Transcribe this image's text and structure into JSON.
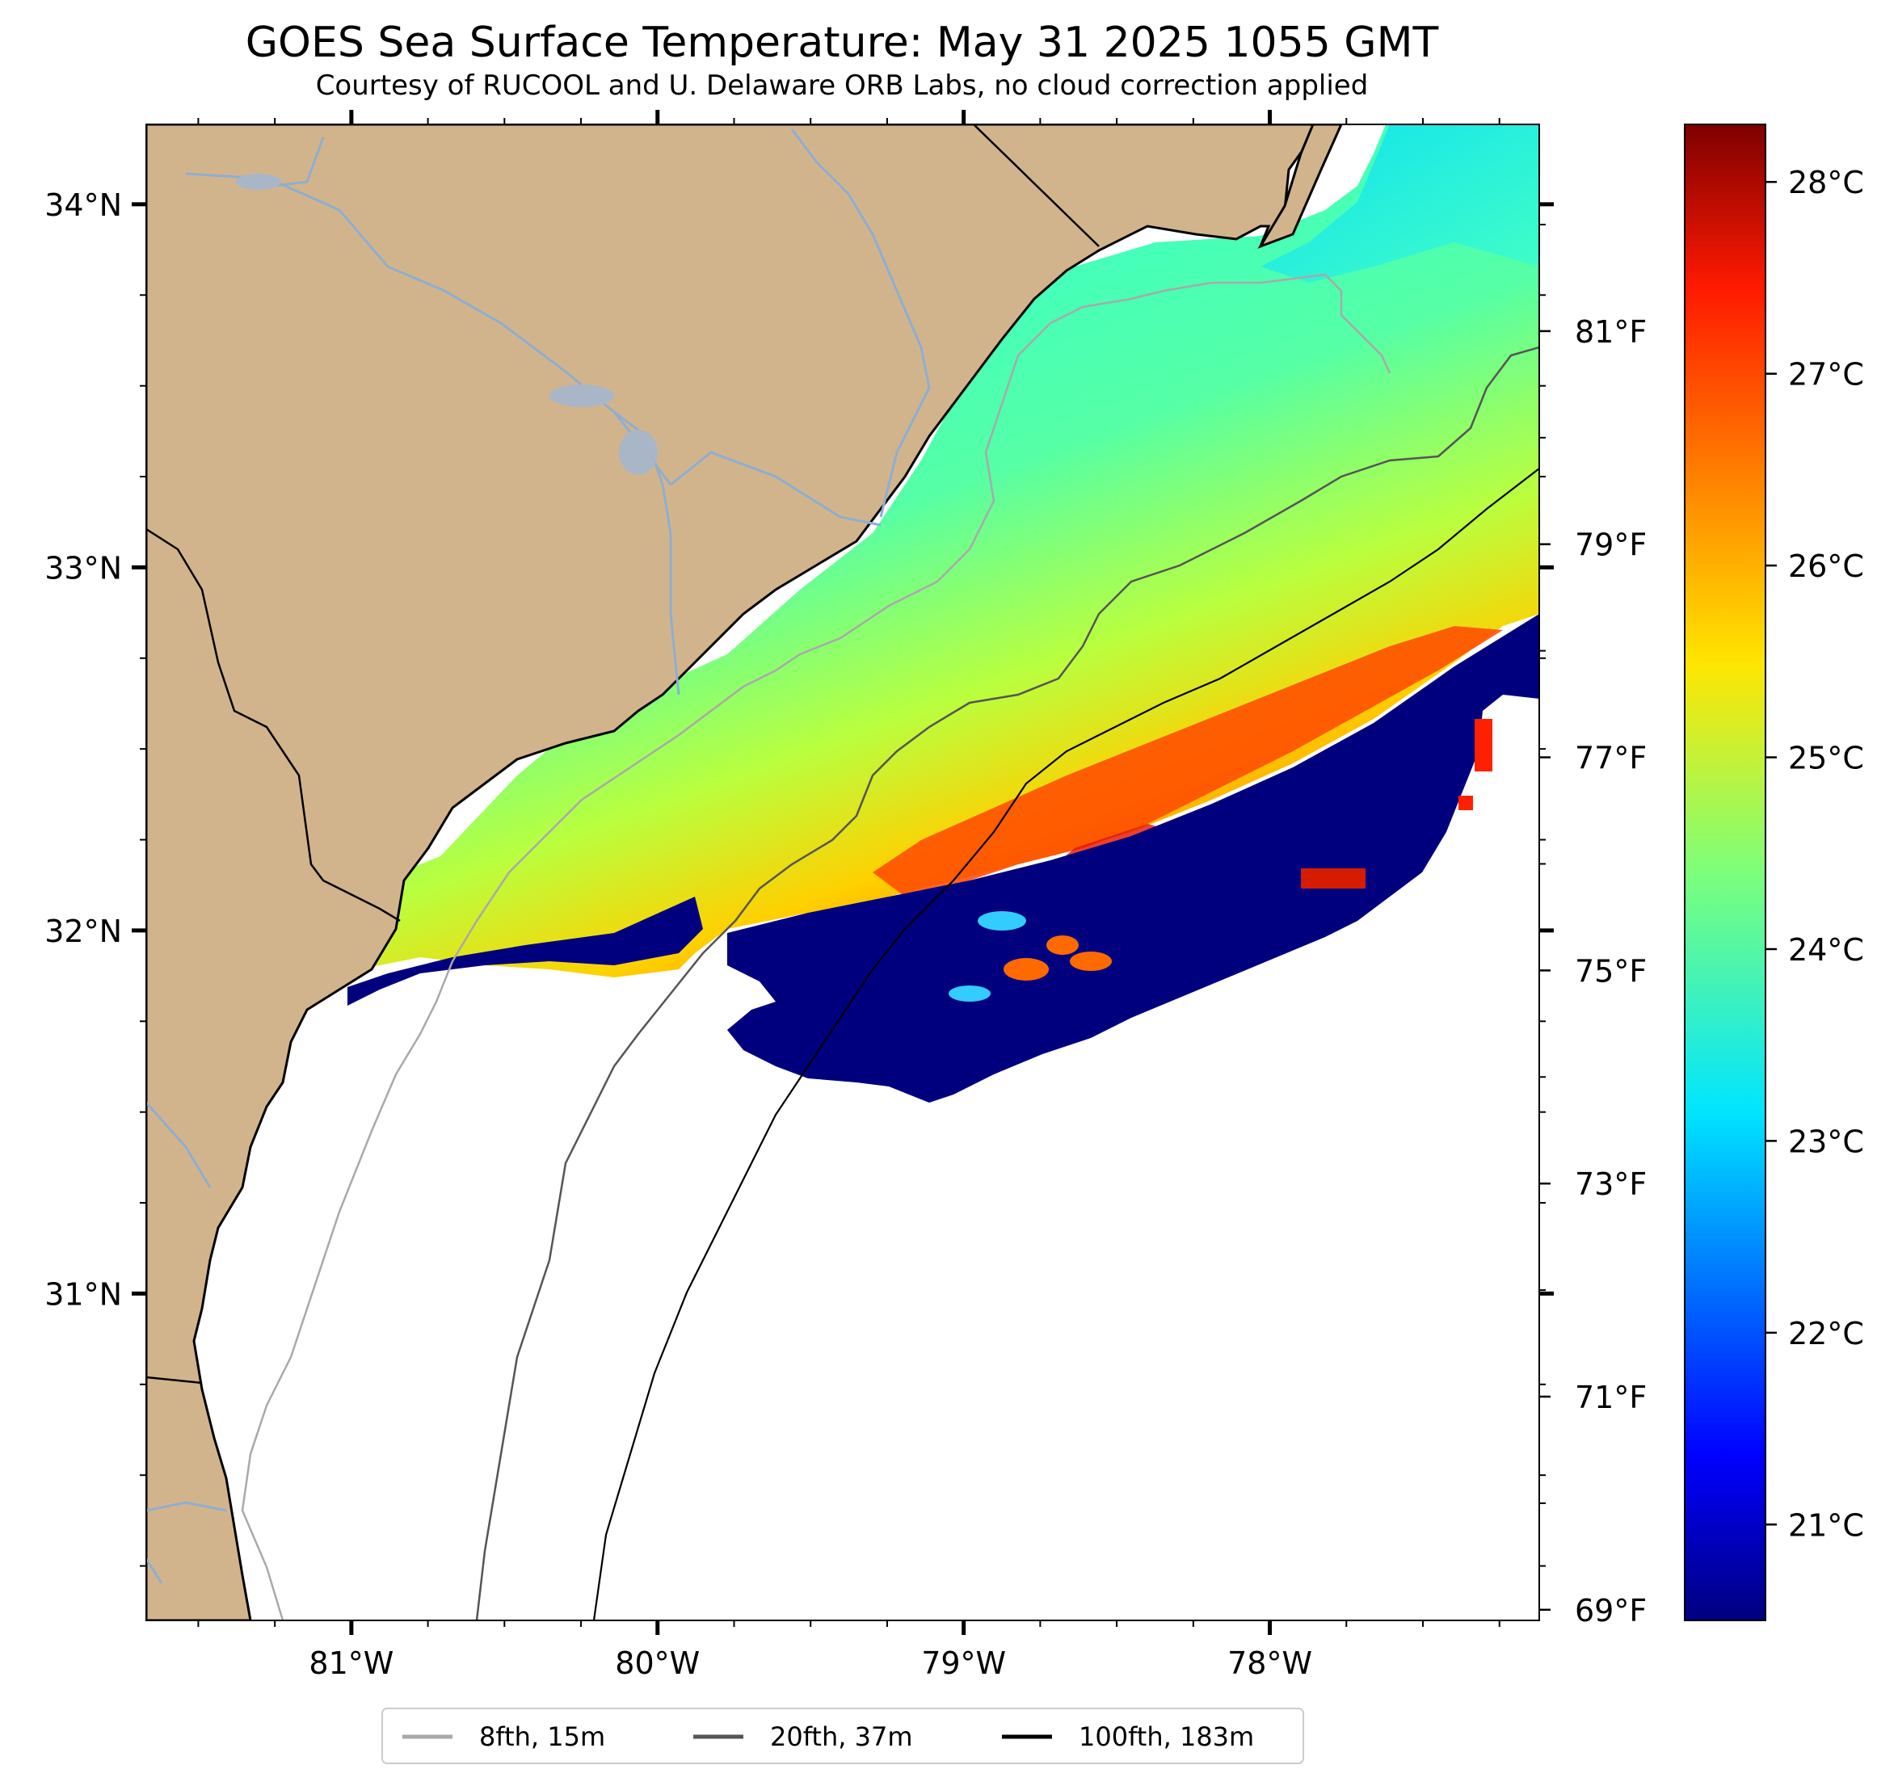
{
  "title": "GOES Sea Surface Temperature: May 31 2025 1055 GMT",
  "subtitle": "Courtesy of RUCOOL and U. Delaware ORB Labs, no cloud correction applied",
  "map": {
    "lon_range": [
      -81.67,
      -77.12
    ],
    "lat_range": [
      30.1,
      34.22
    ],
    "lat_ticks": [
      {
        "value": 34,
        "label": "34°N"
      },
      {
        "value": 33,
        "label": "33°N"
      },
      {
        "value": 32,
        "label": "32°N"
      },
      {
        "value": 31,
        "label": "31°N"
      }
    ],
    "lon_ticks": [
      {
        "value": -81,
        "label": "81°W"
      },
      {
        "value": -80,
        "label": "80°W"
      },
      {
        "value": -79,
        "label": "79°W"
      },
      {
        "value": -78,
        "label": "78°W"
      }
    ],
    "colors": {
      "land": "#d2b48c",
      "coast": "#000000",
      "rivers": "#8eaed0",
      "cold_water": "#00007f",
      "bathy_8": "#a9a9a9",
      "bathy_20": "#555555",
      "bathy_100": "#000000"
    }
  },
  "colorbar": {
    "colormap": "jet",
    "celsius_range": [
      20.5,
      28.3
    ],
    "celsius_labels": [
      {
        "value": 28,
        "label": "28°C"
      },
      {
        "value": 27,
        "label": "27°C"
      },
      {
        "value": 26,
        "label": "26°C"
      },
      {
        "value": 25,
        "label": "25°C"
      },
      {
        "value": 24,
        "label": "24°C"
      },
      {
        "value": 23,
        "label": "23°C"
      },
      {
        "value": 22,
        "label": "22°C"
      },
      {
        "value": 21,
        "label": "21°C"
      }
    ],
    "fahrenheit_labels": [
      {
        "value": 81,
        "label": "81°F"
      },
      {
        "value": 79,
        "label": "79°F"
      },
      {
        "value": 77,
        "label": "77°F"
      },
      {
        "value": 75,
        "label": "75°F"
      },
      {
        "value": 73,
        "label": "73°F"
      },
      {
        "value": 71,
        "label": "71°F"
      },
      {
        "value": 69,
        "label": "69°F"
      }
    ]
  },
  "legend": [
    {
      "label": "8fth, 15m",
      "color": "#a9a9a9"
    },
    {
      "label": "20fth, 37m",
      "color": "#555555"
    },
    {
      "label": "100fth, 183m",
      "color": "#000000"
    }
  ]
}
